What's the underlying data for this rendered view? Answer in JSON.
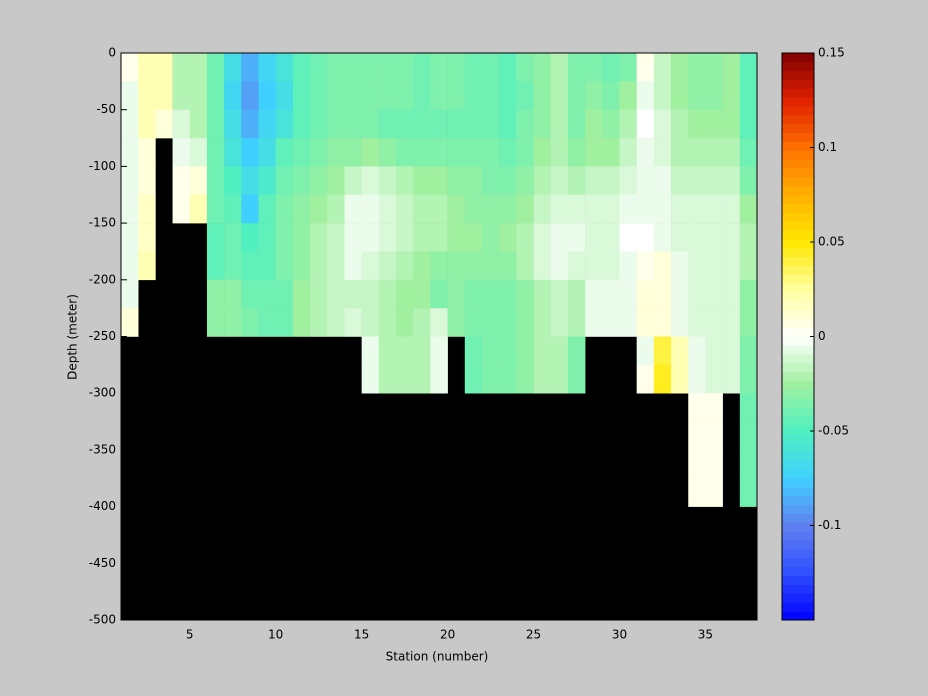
{
  "chart_data": {
    "type": "heatmap",
    "xlabel": "Station (number)",
    "ylabel": "Depth (meter)",
    "xlim": [
      1,
      38
    ],
    "xticks": [
      5,
      10,
      15,
      20,
      25,
      30,
      35
    ],
    "ylim": [
      -500,
      0
    ],
    "yticks": [
      0,
      -50,
      -100,
      -150,
      -200,
      -250,
      -300,
      -350,
      -400,
      -450,
      -500
    ],
    "x": [
      1,
      2,
      3,
      4,
      5,
      6,
      7,
      8,
      9,
      10,
      11,
      12,
      13,
      14,
      15,
      16,
      17,
      18,
      19,
      20,
      21,
      22,
      23,
      24,
      25,
      26,
      27,
      28,
      29,
      30,
      31,
      32,
      33,
      34,
      35,
      36,
      37
    ],
    "y": [
      0,
      -25,
      -50,
      -75,
      -100,
      -125,
      -150,
      -175,
      -200,
      -225,
      -250,
      -275,
      -300,
      -325,
      -350,
      -375,
      -400,
      -425,
      -450,
      -475
    ],
    "cell_width": 1,
    "cell_height": 25,
    "clim": [
      -0.15,
      0.15
    ],
    "cticks": [
      -0.1,
      -0.05,
      0,
      0.05,
      0.1,
      0.15
    ],
    "colormap": [
      "#0000ff",
      "#3050ff",
      "#6080f0",
      "#40d0ff",
      "#50f0c0",
      "#a0f0a0",
      "#ffffff",
      "#ffffa0",
      "#ffe800",
      "#ffb000",
      "#ff7000",
      "#e02000",
      "#800000"
    ],
    "background": "#000000",
    "z": [
      [
        0.005,
        -0.005,
        -0.005,
        -0.005,
        -0.005,
        -0.005,
        -0.005,
        -0.005,
        -0.005,
        0.01,
        null,
        null,
        null,
        null,
        null,
        null,
        null,
        null,
        null,
        null
      ],
      [
        0.02,
        0.02,
        0.02,
        0.01,
        0.01,
        0.015,
        0.015,
        0.02,
        null,
        null,
        null,
        null,
        null,
        null,
        null,
        null,
        null,
        null,
        null,
        null
      ],
      [
        0.02,
        0.02,
        0.01,
        null,
        null,
        null,
        null,
        null,
        null,
        null,
        null,
        null,
        null,
        null,
        null,
        null,
        null,
        null,
        null,
        null
      ],
      [
        -0.02,
        -0.02,
        -0.01,
        -0.005,
        0.005,
        0.005,
        null,
        null,
        null,
        null,
        null,
        null,
        null,
        null,
        null,
        null,
        null,
        null,
        null,
        null
      ],
      [
        -0.02,
        -0.02,
        -0.02,
        -0.01,
        0.01,
        0.02,
        null,
        null,
        null,
        null,
        null,
        null,
        null,
        null,
        null,
        null,
        null,
        null,
        null,
        null
      ],
      [
        -0.04,
        -0.04,
        -0.04,
        -0.04,
        -0.04,
        -0.04,
        -0.045,
        -0.045,
        -0.03,
        -0.03,
        null,
        null,
        null,
        null,
        null,
        null,
        null,
        null,
        null,
        null
      ],
      [
        -0.065,
        -0.07,
        -0.065,
        -0.06,
        -0.05,
        -0.045,
        -0.04,
        -0.04,
        -0.03,
        -0.03,
        null,
        null,
        null,
        null,
        null,
        null,
        null,
        null,
        null,
        null
      ],
      [
        -0.085,
        -0.09,
        -0.085,
        -0.075,
        -0.065,
        -0.075,
        -0.05,
        -0.045,
        -0.04,
        -0.035,
        null,
        null,
        null,
        null,
        null,
        null,
        null,
        null,
        null,
        null
      ],
      [
        -0.07,
        -0.075,
        -0.07,
        -0.065,
        -0.055,
        -0.045,
        -0.045,
        -0.045,
        -0.04,
        -0.04,
        null,
        null,
        null,
        null,
        null,
        null,
        null,
        null,
        null,
        null
      ],
      [
        -0.06,
        -0.065,
        -0.06,
        -0.045,
        -0.04,
        -0.035,
        -0.035,
        -0.035,
        -0.04,
        -0.04,
        null,
        null,
        null,
        null,
        null,
        null,
        null,
        null,
        null,
        null
      ],
      [
        -0.045,
        -0.045,
        -0.045,
        -0.04,
        -0.035,
        -0.03,
        -0.03,
        -0.03,
        -0.025,
        -0.025,
        null,
        null,
        null,
        null,
        null,
        null,
        null,
        null,
        null,
        null
      ],
      [
        -0.04,
        -0.04,
        -0.04,
        -0.035,
        -0.03,
        -0.025,
        -0.02,
        -0.02,
        -0.02,
        -0.02,
        null,
        null,
        null,
        null,
        null,
        null,
        null,
        null,
        null,
        null
      ],
      [
        -0.035,
        -0.035,
        -0.035,
        -0.03,
        -0.025,
        -0.02,
        -0.015,
        -0.015,
        -0.015,
        -0.015,
        null,
        null,
        null,
        null,
        null,
        null,
        null,
        null,
        null,
        null
      ],
      [
        -0.035,
        -0.035,
        -0.035,
        -0.03,
        -0.015,
        -0.005,
        -0.005,
        -0.005,
        -0.015,
        -0.01,
        null,
        null,
        null,
        null,
        null,
        null,
        null,
        null,
        null,
        null
      ],
      [
        -0.035,
        -0.035,
        -0.035,
        -0.025,
        -0.01,
        -0.005,
        -0.005,
        -0.01,
        -0.015,
        -0.015,
        -0.005,
        -0.005,
        null,
        null,
        null,
        null,
        null,
        null,
        null,
        null
      ],
      [
        -0.035,
        -0.035,
        -0.04,
        -0.03,
        -0.015,
        -0.01,
        -0.01,
        -0.015,
        -0.02,
        -0.02,
        -0.02,
        -0.02,
        null,
        null,
        null,
        null,
        null,
        null,
        null,
        null
      ],
      [
        -0.035,
        -0.035,
        -0.04,
        -0.035,
        -0.02,
        -0.015,
        -0.015,
        -0.02,
        -0.025,
        -0.025,
        -0.02,
        -0.02,
        null,
        null,
        null,
        null,
        null,
        null,
        null,
        null
      ],
      [
        -0.04,
        -0.04,
        -0.04,
        -0.035,
        -0.025,
        -0.02,
        -0.02,
        -0.025,
        -0.025,
        -0.02,
        -0.02,
        -0.02,
        null,
        null,
        null,
        null,
        null,
        null,
        null,
        null
      ],
      [
        -0.035,
        -0.035,
        -0.04,
        -0.035,
        -0.025,
        -0.02,
        -0.02,
        -0.03,
        -0.035,
        -0.01,
        -0.005,
        -0.005,
        null,
        null,
        null,
        null,
        null,
        null,
        null,
        null
      ],
      [
        -0.035,
        -0.035,
        -0.04,
        -0.035,
        -0.03,
        -0.025,
        -0.025,
        -0.03,
        -0.03,
        -0.03,
        null,
        null,
        null,
        null,
        null,
        null,
        null,
        null,
        null,
        null
      ],
      [
        -0.04,
        -0.04,
        -0.04,
        -0.035,
        -0.03,
        -0.03,
        -0.025,
        -0.03,
        -0.035,
        -0.035,
        -0.04,
        -0.04,
        null,
        null,
        null,
        null,
        null,
        null,
        null,
        null
      ],
      [
        -0.04,
        -0.04,
        -0.04,
        -0.035,
        -0.035,
        -0.03,
        -0.03,
        -0.03,
        -0.035,
        -0.035,
        -0.035,
        -0.035,
        null,
        null,
        null,
        null,
        null,
        null,
        null,
        null
      ],
      [
        -0.045,
        -0.045,
        -0.045,
        -0.04,
        -0.035,
        -0.03,
        -0.025,
        -0.03,
        -0.035,
        -0.035,
        -0.035,
        -0.035,
        null,
        null,
        null,
        null,
        null,
        null,
        null,
        null
      ],
      [
        -0.035,
        -0.04,
        -0.035,
        -0.035,
        -0.03,
        -0.025,
        -0.02,
        -0.02,
        -0.03,
        -0.03,
        -0.03,
        -0.03,
        null,
        null,
        null,
        null,
        null,
        null,
        null,
        null
      ],
      [
        -0.03,
        -0.03,
        -0.03,
        -0.025,
        -0.02,
        -0.015,
        -0.01,
        -0.01,
        -0.02,
        -0.02,
        -0.02,
        -0.02,
        null,
        null,
        null,
        null,
        null,
        null,
        null,
        null
      ],
      [
        -0.02,
        -0.02,
        -0.02,
        -0.02,
        -0.015,
        -0.01,
        -0.005,
        -0.005,
        -0.015,
        -0.015,
        -0.02,
        -0.02,
        null,
        null,
        null,
        null,
        null,
        null,
        null,
        null
      ],
      [
        -0.035,
        -0.035,
        -0.035,
        -0.03,
        -0.02,
        -0.01,
        -0.005,
        -0.01,
        -0.02,
        -0.02,
        -0.035,
        -0.035,
        null,
        null,
        null,
        null,
        null,
        null,
        null,
        null
      ],
      [
        -0.035,
        -0.03,
        -0.025,
        -0.025,
        -0.015,
        -0.01,
        -0.01,
        -0.01,
        -0.005,
        -0.005,
        null,
        null,
        null,
        null,
        null,
        null,
        null,
        null,
        null,
        null
      ],
      [
        -0.04,
        -0.035,
        -0.03,
        -0.025,
        -0.015,
        -0.01,
        -0.01,
        -0.01,
        -0.005,
        -0.005,
        null,
        null,
        null,
        null,
        null,
        null,
        null,
        null,
        null,
        null
      ],
      [
        -0.035,
        -0.025,
        -0.02,
        -0.015,
        -0.01,
        -0.005,
        0,
        -0.005,
        -0.005,
        -0.005,
        null,
        null,
        null,
        null,
        null,
        null,
        null,
        null,
        null,
        null
      ],
      [
        0.005,
        -0.005,
        0,
        -0.005,
        -0.005,
        -0.005,
        0,
        0.005,
        0.01,
        0.01,
        -0.005,
        0.005,
        null,
        null,
        null,
        null,
        null,
        null,
        null,
        null
      ],
      [
        -0.015,
        -0.015,
        -0.01,
        -0.01,
        -0.005,
        -0.005,
        -0.005,
        0.01,
        0.01,
        0.01,
        0.04,
        0.045,
        null,
        null,
        null,
        null,
        null,
        null,
        null,
        null
      ],
      [
        -0.025,
        -0.025,
        -0.02,
        -0.02,
        -0.015,
        -0.01,
        -0.01,
        -0.005,
        -0.005,
        -0.005,
        0.02,
        0.02,
        null,
        null,
        null,
        null,
        null,
        null,
        null,
        null
      ],
      [
        -0.03,
        -0.03,
        -0.025,
        -0.02,
        -0.015,
        -0.01,
        -0.01,
        -0.01,
        -0.01,
        -0.01,
        -0.005,
        -0.005,
        0.005,
        0.005,
        0.005,
        0.005,
        null,
        null,
        null,
        null
      ],
      [
        -0.03,
        -0.03,
        -0.025,
        -0.02,
        -0.015,
        -0.01,
        -0.01,
        -0.01,
        -0.01,
        -0.01,
        -0.01,
        -0.01,
        0.005,
        0.005,
        0.005,
        0.005,
        null,
        null,
        null,
        null
      ],
      [
        -0.025,
        -0.025,
        -0.025,
        -0.02,
        -0.015,
        -0.01,
        -0.01,
        -0.01,
        -0.01,
        -0.01,
        -0.01,
        -0.01,
        null,
        null,
        null,
        null,
        null,
        null,
        null,
        null
      ],
      [
        -0.045,
        -0.045,
        -0.045,
        -0.04,
        -0.035,
        -0.025,
        -0.02,
        -0.02,
        -0.03,
        -0.03,
        -0.035,
        -0.035,
        -0.04,
        -0.04,
        -0.04,
        -0.04,
        null,
        null,
        null,
        null
      ]
    ]
  }
}
